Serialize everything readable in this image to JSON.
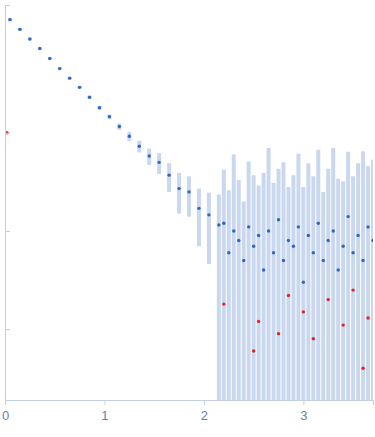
{
  "chart_data": {
    "type": "scatter",
    "log": "y",
    "tick_labels": "x",
    "marker": "circle",
    "xlim": [
      0,
      3.7
    ],
    "xticks": [
      0,
      1,
      2,
      3
    ],
    "ylim": [
      0.0019,
      20
    ],
    "yticks": [
      0.01,
      0.1,
      1
    ],
    "series": [
      {
        "color": "#3366c4",
        "x": [
          0.05,
          0.15,
          0.25,
          0.35,
          0.45,
          0.55,
          0.65,
          0.75,
          0.85,
          0.95,
          1.05,
          1.15,
          1.25,
          1.35,
          1.45,
          1.55,
          1.65,
          1.75,
          1.85,
          1.95,
          2.05,
          2.15,
          2.2,
          2.25,
          2.3,
          2.35,
          2.4,
          2.45,
          2.5,
          2.55,
          2.6,
          2.65,
          2.7,
          2.75,
          2.8,
          2.85,
          2.9,
          2.95,
          3.0,
          3.05,
          3.1,
          3.15,
          3.2,
          3.25,
          3.3,
          3.35,
          3.4,
          3.45,
          3.5,
          3.55,
          3.6,
          3.65,
          3.7
        ],
        "values": [
          14.2,
          11.3,
          9.0,
          7.2,
          5.7,
          4.5,
          3.6,
          2.9,
          2.3,
          1.8,
          1.46,
          1.16,
          0.92,
          0.73,
          0.58,
          0.5,
          0.37,
          0.27,
          0.25,
          0.17,
          0.146,
          0.115,
          0.12,
          0.06,
          0.1,
          0.08,
          0.05,
          0.11,
          0.07,
          0.09,
          0.04,
          0.1,
          0.06,
          0.13,
          0.05,
          0.08,
          0.07,
          0.11,
          0.03,
          0.09,
          0.06,
          0.12,
          0.05,
          0.08,
          0.1,
          0.04,
          0.07,
          0.14,
          0.06,
          0.09,
          0.05,
          0.11,
          0.08
        ],
        "errors": [
          0.6,
          0.4,
          0.3,
          0.2,
          0.15,
          0.12,
          0.1,
          0.09,
          0.08,
          0.08,
          0.08,
          0.09,
          0.1,
          0.1,
          0.11,
          0.12,
          0.12,
          0.12,
          0.11,
          0.1,
          0.1,
          0.12,
          0.3,
          0.2,
          0.5,
          0.25,
          0.15,
          0.4,
          0.3,
          0.2,
          0.35,
          0.6,
          0.25,
          0.3,
          0.45,
          0.2,
          0.3,
          0.5,
          0.25,
          0.4,
          0.3,
          0.55,
          0.2,
          0.35,
          0.6,
          0.3,
          0.25,
          0.5,
          0.3,
          0.4,
          0.6,
          0.35,
          0.45
        ]
      },
      {
        "color": "#e0242a",
        "x": [
          0.02,
          2.2,
          2.5,
          2.55,
          2.75,
          2.85,
          3.0,
          3.1,
          3.25,
          3.4,
          3.5,
          3.6,
          3.65
        ],
        "values": [
          1.0,
          0.018,
          0.006,
          0.012,
          0.009,
          0.022,
          0.015,
          0.008,
          0.02,
          0.011,
          0.025,
          0.004,
          0.013
        ]
      }
    ]
  }
}
